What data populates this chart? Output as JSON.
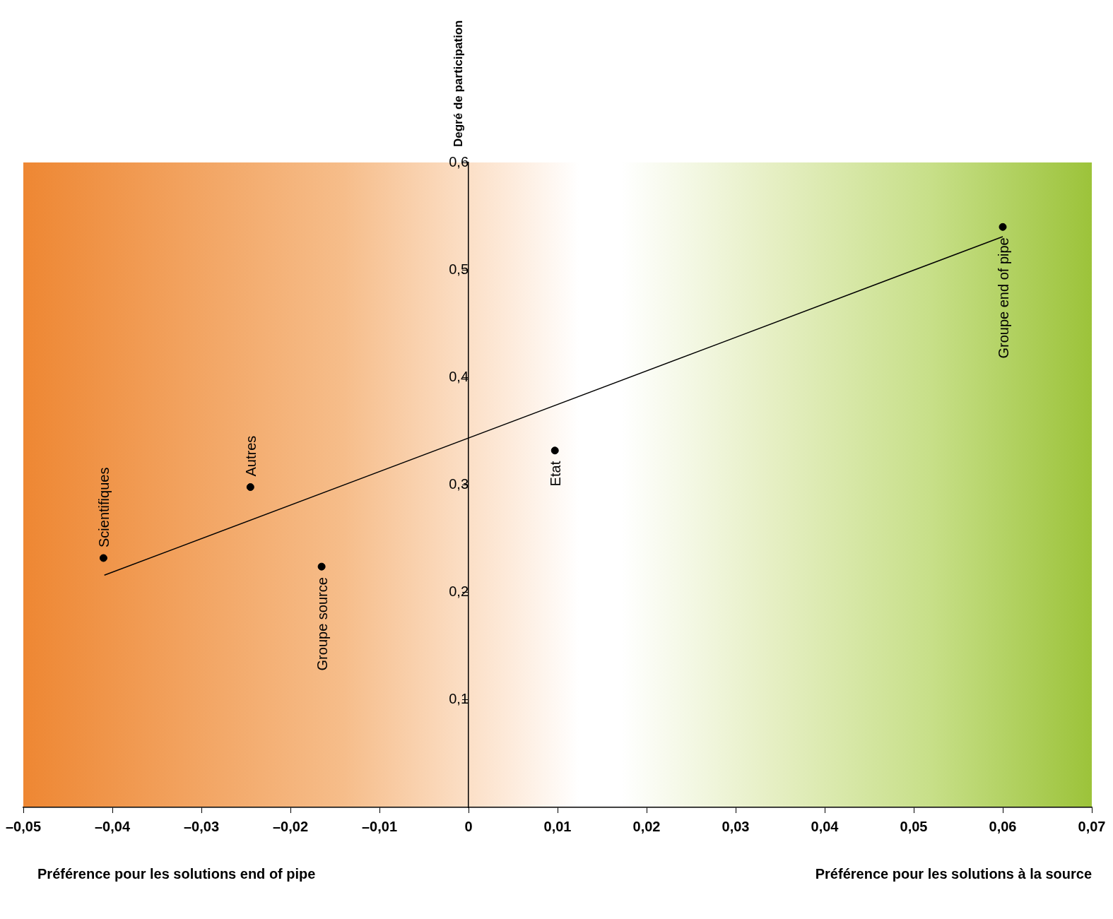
{
  "chart_data": {
    "type": "scatter",
    "ylabel": "Degré de participation",
    "x": [
      -0.041,
      -0.0245,
      -0.0165,
      0.0097,
      0.06
    ],
    "series": [
      {
        "type": "scatter",
        "color": "#000000",
        "values": [
          0.232,
          0.298,
          0.224,
          0.332,
          0.54
        ]
      },
      {
        "type": "line",
        "marker": "none",
        "color": "#000000",
        "x": [
          -0.0409,
          0.06
        ],
        "values": [
          0.216,
          0.531
        ]
      }
    ],
    "xlim": [
      -0.05,
      0.07
    ],
    "xticks": [
      {
        "value": -0.05,
        "label": "–0,05"
      },
      {
        "value": -0.04,
        "label": "–0,04"
      },
      {
        "value": -0.03,
        "label": "–0,03"
      },
      {
        "value": -0.02,
        "label": "–0,02"
      },
      {
        "value": -0.01,
        "label": "–0,01"
      },
      0,
      {
        "value": 0.01,
        "label": "0,01"
      },
      {
        "value": 0.02,
        "label": "0,02"
      },
      {
        "value": 0.03,
        "label": "0,03"
      },
      {
        "value": 0.04,
        "label": "0,04"
      },
      {
        "value": 0.05,
        "label": "0,05"
      },
      {
        "value": 0.06,
        "label": "0,06"
      },
      {
        "value": 0.07,
        "label": "0,07"
      }
    ],
    "ylim": [
      0,
      0.6
    ],
    "yticks": [
      {
        "value": 0.1,
        "label": "0,1"
      },
      {
        "value": 0.2,
        "label": "0,2"
      },
      {
        "value": 0.3,
        "label": "0,3"
      },
      {
        "value": 0.4,
        "label": "0,4"
      },
      {
        "value": 0.5,
        "label": "0,5"
      },
      {
        "value": 0.6,
        "label": "0,6"
      }
    ],
    "grid": false,
    "legend": false,
    "marker": "circle",
    "line_style": "solid",
    "annotations": [
      "Préférence pour les solutions end of pipe",
      "Préférence pour les solutions à la source",
      {
        "text": "Scientifiques",
        "x": -0.041,
        "y": 0.232
      },
      {
        "text": "Autres",
        "x": -0.0245,
        "y": 0.298
      },
      {
        "text": "Groupe source",
        "x": -0.0165,
        "y": 0.224
      },
      {
        "text": "Etat",
        "x": 0.0097,
        "y": 0.332
      },
      {
        "text": "Groupe end of pipe",
        "x": 0.06,
        "y": 0.54
      }
    ]
  }
}
